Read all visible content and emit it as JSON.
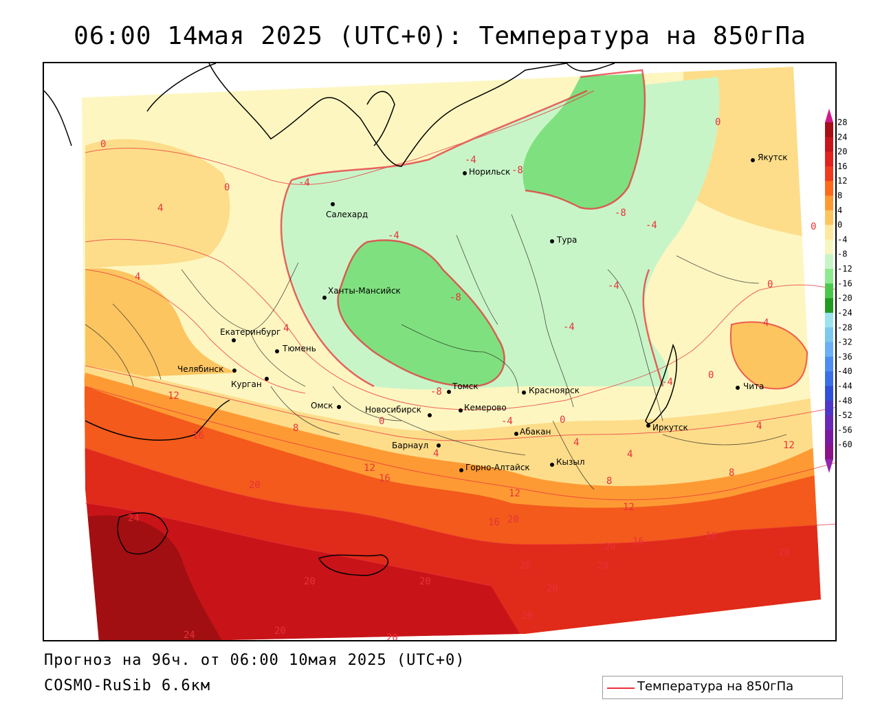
{
  "title": "06:00 14мая 2025 (UTC+0): Температура на 850гПа",
  "footer": {
    "forecast": "Прогноз на 96ч. от 06:00 10мая 2025 (UTC+0)",
    "model": "COSMO-RuSib 6.6км"
  },
  "legend": {
    "label": "Температура на 850гПа",
    "color": "#e8313a"
  },
  "colorbar": {
    "ticks": [
      "28",
      "24",
      "20",
      "16",
      "12",
      "8",
      "4",
      "0",
      "-4",
      "-8",
      "-12",
      "-16",
      "-20",
      "-24",
      "-28",
      "-32",
      "-36",
      "-40",
      "-44",
      "-48",
      "-52",
      "-56",
      "-60"
    ],
    "colors": [
      "#a50f15",
      "#c8141c",
      "#e2221e",
      "#f03b20",
      "#fd6a1a",
      "#fe9a34",
      "#fdc560",
      "#fde8a0",
      "#f8f6c0",
      "#c8f5c8",
      "#8eea8e",
      "#4bc84b",
      "#229a22",
      "#9be3ef",
      "#7cc8ef",
      "#6ab0f3",
      "#4d8ef0",
      "#3b6fe6",
      "#3050d8",
      "#4f38c8",
      "#6a2ab6",
      "#7a1aa0",
      "#8a148a"
    ],
    "top_arrow_color": "#d01a8c",
    "bottom_arrow_color": "#9028b0"
  },
  "cities": [
    {
      "name": "Якутск"
    },
    {
      "name": "Норильск"
    },
    {
      "name": "Салехард"
    },
    {
      "name": "Тура"
    },
    {
      "name": "Ханты-Мансийск"
    },
    {
      "name": "Екатеринбург"
    },
    {
      "name": "Тюмень"
    },
    {
      "name": "Челябинск"
    },
    {
      "name": "Курган"
    },
    {
      "name": "Омск"
    },
    {
      "name": "Новосибирск"
    },
    {
      "name": "Томск"
    },
    {
      "name": "Кемерово"
    },
    {
      "name": "Красноярск"
    },
    {
      "name": "Абакан"
    },
    {
      "name": "Иркутск"
    },
    {
      "name": "Чита"
    },
    {
      "name": "Барнаул"
    },
    {
      "name": "Горно-Алтайск"
    },
    {
      "name": "Кызыл"
    }
  ],
  "contour_labels": [
    "0",
    "0",
    "4",
    "4",
    "-4",
    "-4",
    "-8",
    "-4",
    "-4",
    "0",
    "0",
    "-8",
    "-4",
    "-8",
    "-4",
    "0",
    "4",
    "4",
    "0",
    "-4",
    "12",
    "16",
    "12",
    "8",
    "-8",
    "0",
    "-4",
    "0",
    "4",
    "4",
    "4",
    "12",
    "8",
    "4",
    "8",
    "12",
    "12",
    "16",
    "20",
    "20",
    "16",
    "16",
    "20",
    "16",
    "20",
    "20",
    "20",
    "20",
    "20",
    "20",
    "24",
    "20",
    "20",
    "24",
    "20"
  ]
}
